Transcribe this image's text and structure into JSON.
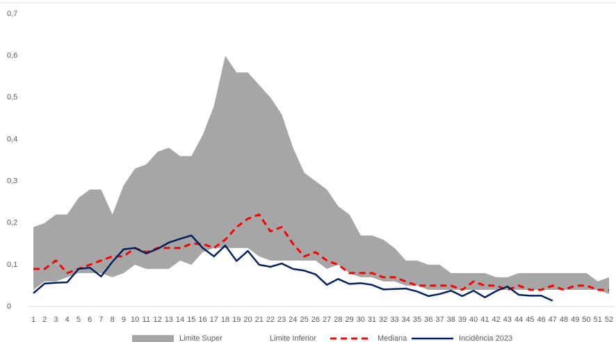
{
  "chart_data": {
    "type": "area-line",
    "categories": [
      "1",
      "2",
      "3",
      "4",
      "5",
      "6",
      "7",
      "8",
      "9",
      "10",
      "11",
      "12",
      "13",
      "14",
      "15",
      "16",
      "17",
      "18",
      "19",
      "20",
      "21",
      "22",
      "23",
      "24",
      "25",
      "26",
      "27",
      "28",
      "29",
      "30",
      "31",
      "32",
      "33",
      "34",
      "35",
      "36",
      "37",
      "38",
      "39",
      "40",
      "41",
      "42",
      "43",
      "44",
      "45",
      "46",
      "47",
      "48",
      "49",
      "50",
      "51",
      "52"
    ],
    "series": [
      {
        "name": "Limite Superior",
        "color": "#a6a6a6",
        "kind": "area",
        "values": [
          0.19,
          0.2,
          0.22,
          0.22,
          0.26,
          0.28,
          0.28,
          0.22,
          0.29,
          0.33,
          0.34,
          0.37,
          0.38,
          0.36,
          0.36,
          0.41,
          0.48,
          0.6,
          0.56,
          0.56,
          0.53,
          0.5,
          0.46,
          0.38,
          0.32,
          0.3,
          0.28,
          0.24,
          0.22,
          0.17,
          0.17,
          0.16,
          0.14,
          0.11,
          0.11,
          0.1,
          0.1,
          0.08,
          0.08,
          0.08,
          0.08,
          0.07,
          0.07,
          0.08,
          0.08,
          0.08,
          0.08,
          0.08,
          0.08,
          0.08,
          0.06,
          0.07
        ]
      },
      {
        "name": "Limite Inferior",
        "color": "#ffffff",
        "kind": "area",
        "values": [
          0.04,
          0.06,
          0.06,
          0.07,
          0.08,
          0.08,
          0.08,
          0.07,
          0.08,
          0.1,
          0.09,
          0.09,
          0.09,
          0.11,
          0.1,
          0.13,
          0.14,
          0.14,
          0.14,
          0.14,
          0.12,
          0.11,
          0.11,
          0.11,
          0.11,
          0.11,
          0.09,
          0.1,
          0.08,
          0.07,
          0.07,
          0.06,
          0.06,
          0.05,
          0.05,
          0.04,
          0.04,
          0.04,
          0.04,
          0.04,
          0.04,
          0.04,
          0.04,
          0.04,
          0.04,
          0.04,
          0.04,
          0.04,
          0.04,
          0.04,
          0.04,
          0.03
        ]
      },
      {
        "name": "Mediana",
        "color": "#ff0000",
        "kind": "line",
        "dashed": true,
        "values": [
          0.09,
          0.09,
          0.11,
          0.08,
          0.09,
          0.1,
          0.11,
          0.12,
          0.12,
          0.14,
          0.13,
          0.14,
          0.14,
          0.14,
          0.15,
          0.15,
          0.14,
          0.16,
          0.19,
          0.21,
          0.22,
          0.18,
          0.19,
          0.15,
          0.12,
          0.13,
          0.11,
          0.1,
          0.08,
          0.08,
          0.08,
          0.07,
          0.07,
          0.06,
          0.05,
          0.05,
          0.05,
          0.05,
          0.04,
          0.06,
          0.05,
          0.05,
          0.04,
          0.05,
          0.04,
          0.04,
          0.05,
          0.04,
          0.05,
          0.05,
          0.04,
          0.04
        ]
      },
      {
        "name": "Incidência 2023",
        "color": "#002060",
        "kind": "line",
        "dashed": false,
        "values": [
          0.032,
          0.055,
          0.057,
          0.058,
          0.09,
          0.093,
          0.072,
          0.107,
          0.137,
          0.14,
          0.127,
          0.138,
          0.153,
          0.162,
          0.17,
          0.14,
          0.12,
          0.146,
          0.109,
          0.133,
          0.1,
          0.095,
          0.103,
          0.09,
          0.086,
          0.077,
          0.052,
          0.066,
          0.054,
          0.056,
          0.052,
          0.041,
          0.042,
          0.043,
          0.036,
          0.025,
          0.03,
          0.038,
          0.025,
          0.038,
          0.022,
          0.037,
          0.048,
          0.028,
          0.026,
          0.026,
          0.014,
          null,
          null,
          null,
          null,
          null
        ]
      }
    ],
    "ylim": [
      0,
      0.7
    ],
    "yticks": [
      {
        "value": 0,
        "label": "0"
      },
      {
        "value": 0.1,
        "label": "0,1"
      },
      {
        "value": 0.2,
        "label": "0,2"
      },
      {
        "value": 0.3,
        "label": "0,3"
      },
      {
        "value": 0.4,
        "label": "0,4"
      },
      {
        "value": 0.5,
        "label": "0,5"
      },
      {
        "value": 0.6,
        "label": "0,6"
      },
      {
        "value": 0.7,
        "label": "0,7"
      }
    ],
    "legend": "bottom"
  }
}
